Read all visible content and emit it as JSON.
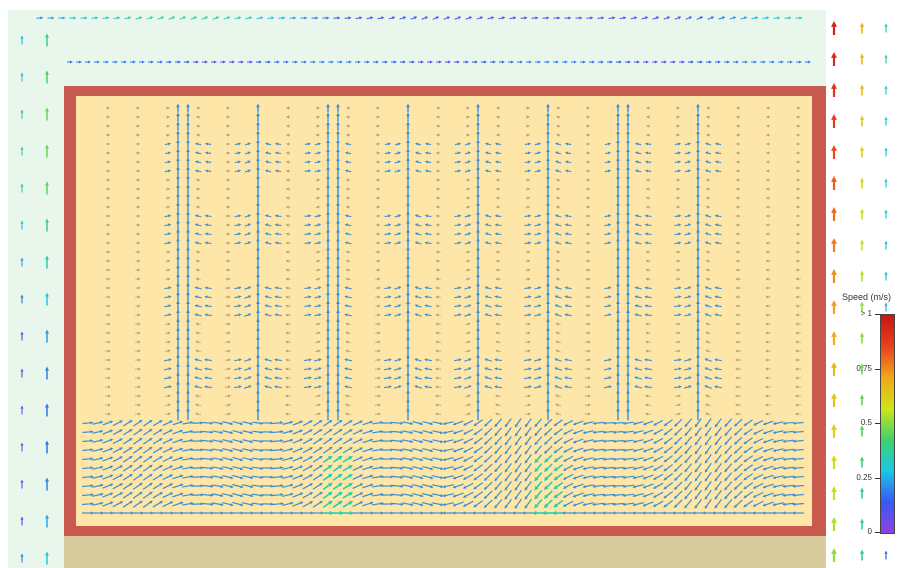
{
  "colors": {
    "background": "#ffffff",
    "air": "#e9f6ec",
    "wall": "#c85a50",
    "room_interior": "#fde6a8",
    "floor": "#d8cc9f",
    "arrow_inside": "#3b8fd2"
  },
  "legend": {
    "title": "Speed (m/s)",
    "ticks": [
      {
        "label": "> 1",
        "value": 1.0
      },
      {
        "label": "0.75",
        "value": 0.75
      },
      {
        "label": "0.5",
        "value": 0.5
      },
      {
        "label": "0.25",
        "value": 0.25
      },
      {
        "label": "0",
        "value": 0.0
      }
    ],
    "colorscale": [
      "#8e44e0",
      "#3a58f5",
      "#19c8e6",
      "#3fd36a",
      "#cfe41a",
      "#f2a51b",
      "#e8401d",
      "#c81414"
    ]
  }
}
